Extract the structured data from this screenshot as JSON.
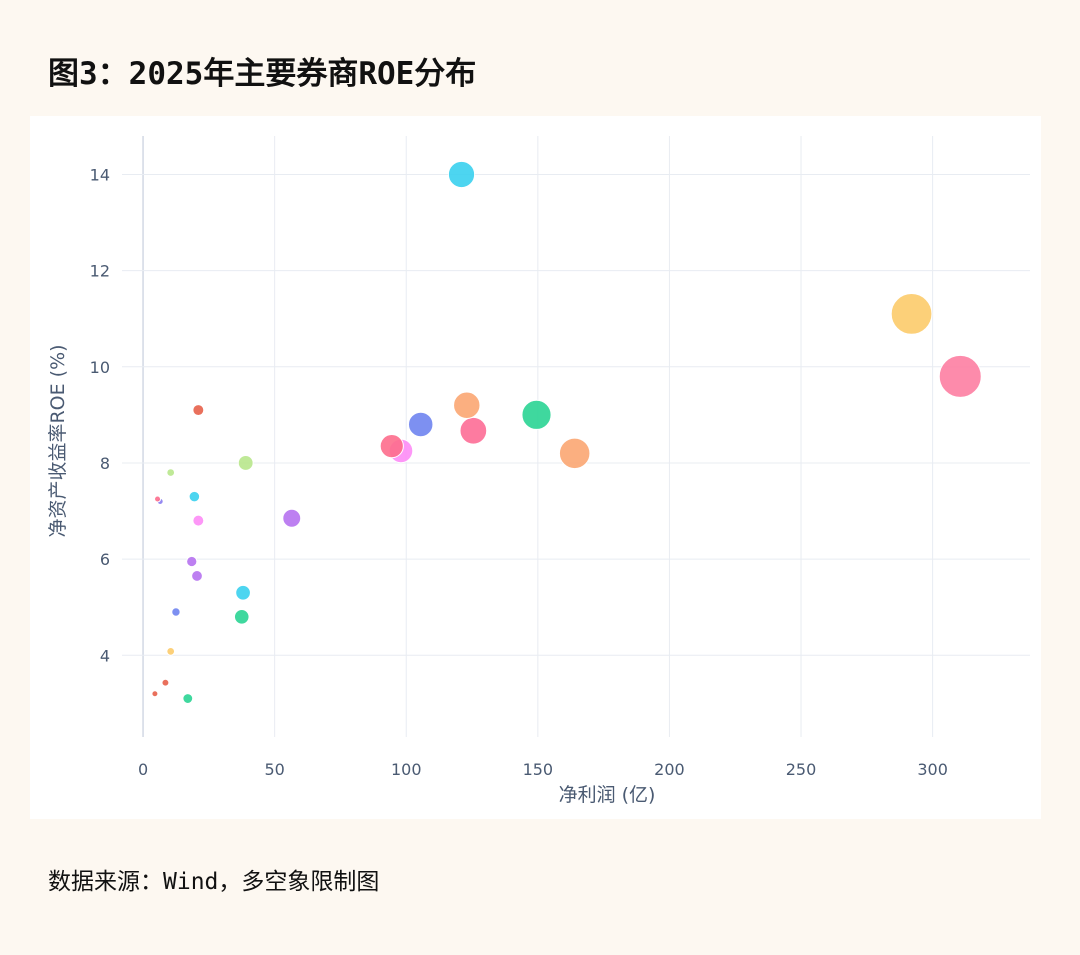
{
  "figure": {
    "title": "图3：2025年主要券商ROE分布",
    "source": "数据来源：Wind，多空象限制图"
  },
  "chart_data": {
    "type": "scatter",
    "xlabel": "净利润 (亿)",
    "ylabel": "净资产收益率ROE (%)",
    "xlim": [
      -8,
      337
    ],
    "ylim": [
      2.3,
      14.8
    ],
    "x_ticks": [
      0,
      50,
      100,
      150,
      200,
      250,
      300
    ],
    "y_ticks": [
      4,
      6,
      8,
      10,
      12,
      14
    ],
    "grid": true,
    "legend": "none",
    "bubble_size_encodes": "净利润",
    "points": [
      {
        "x": 121,
        "y": 14.0,
        "color": "#3ad0ee"
      },
      {
        "x": 292,
        "y": 11.1,
        "color": "#fccb6a"
      },
      {
        "x": 310.5,
        "y": 9.8,
        "color": "#fd7ea2"
      },
      {
        "x": 21,
        "y": 9.1,
        "color": "#e7604a"
      },
      {
        "x": 123,
        "y": 9.2,
        "color": "#fba672"
      },
      {
        "x": 149.5,
        "y": 9.0,
        "color": "#2ad494"
      },
      {
        "x": 105.5,
        "y": 8.8,
        "color": "#6f84f0"
      },
      {
        "x": 125.5,
        "y": 8.67,
        "color": "#fd6d96"
      },
      {
        "x": 94.5,
        "y": 8.35,
        "color": "#fd6d8c"
      },
      {
        "x": 98,
        "y": 8.25,
        "color": "#fd8cf6"
      },
      {
        "x": 164,
        "y": 8.2,
        "color": "#fba672"
      },
      {
        "x": 39,
        "y": 8.0,
        "color": "#b8e78c"
      },
      {
        "x": 10.5,
        "y": 7.8,
        "color": "#b8e78c"
      },
      {
        "x": 5.5,
        "y": 7.25,
        "color": "#fd6d8c"
      },
      {
        "x": 6.5,
        "y": 7.2,
        "color": "#8a7cf0"
      },
      {
        "x": 19.5,
        "y": 7.3,
        "color": "#3ad0ee"
      },
      {
        "x": 21,
        "y": 6.8,
        "color": "#fd8cf6"
      },
      {
        "x": 56.5,
        "y": 6.85,
        "color": "#b672f0"
      },
      {
        "x": 18.5,
        "y": 5.95,
        "color": "#b672f0"
      },
      {
        "x": 20.5,
        "y": 5.65,
        "color": "#b672f0"
      },
      {
        "x": 38,
        "y": 5.3,
        "color": "#3ad0ee"
      },
      {
        "x": 37.5,
        "y": 4.8,
        "color": "#2ad494"
      },
      {
        "x": 12.5,
        "y": 4.9,
        "color": "#6f84f0"
      },
      {
        "x": 10.5,
        "y": 4.08,
        "color": "#fccb6a"
      },
      {
        "x": 8.5,
        "y": 3.43,
        "color": "#e7604a"
      },
      {
        "x": 4.5,
        "y": 3.2,
        "color": "#e7604a"
      },
      {
        "x": 17,
        "y": 3.1,
        "color": "#2ad494"
      }
    ]
  }
}
